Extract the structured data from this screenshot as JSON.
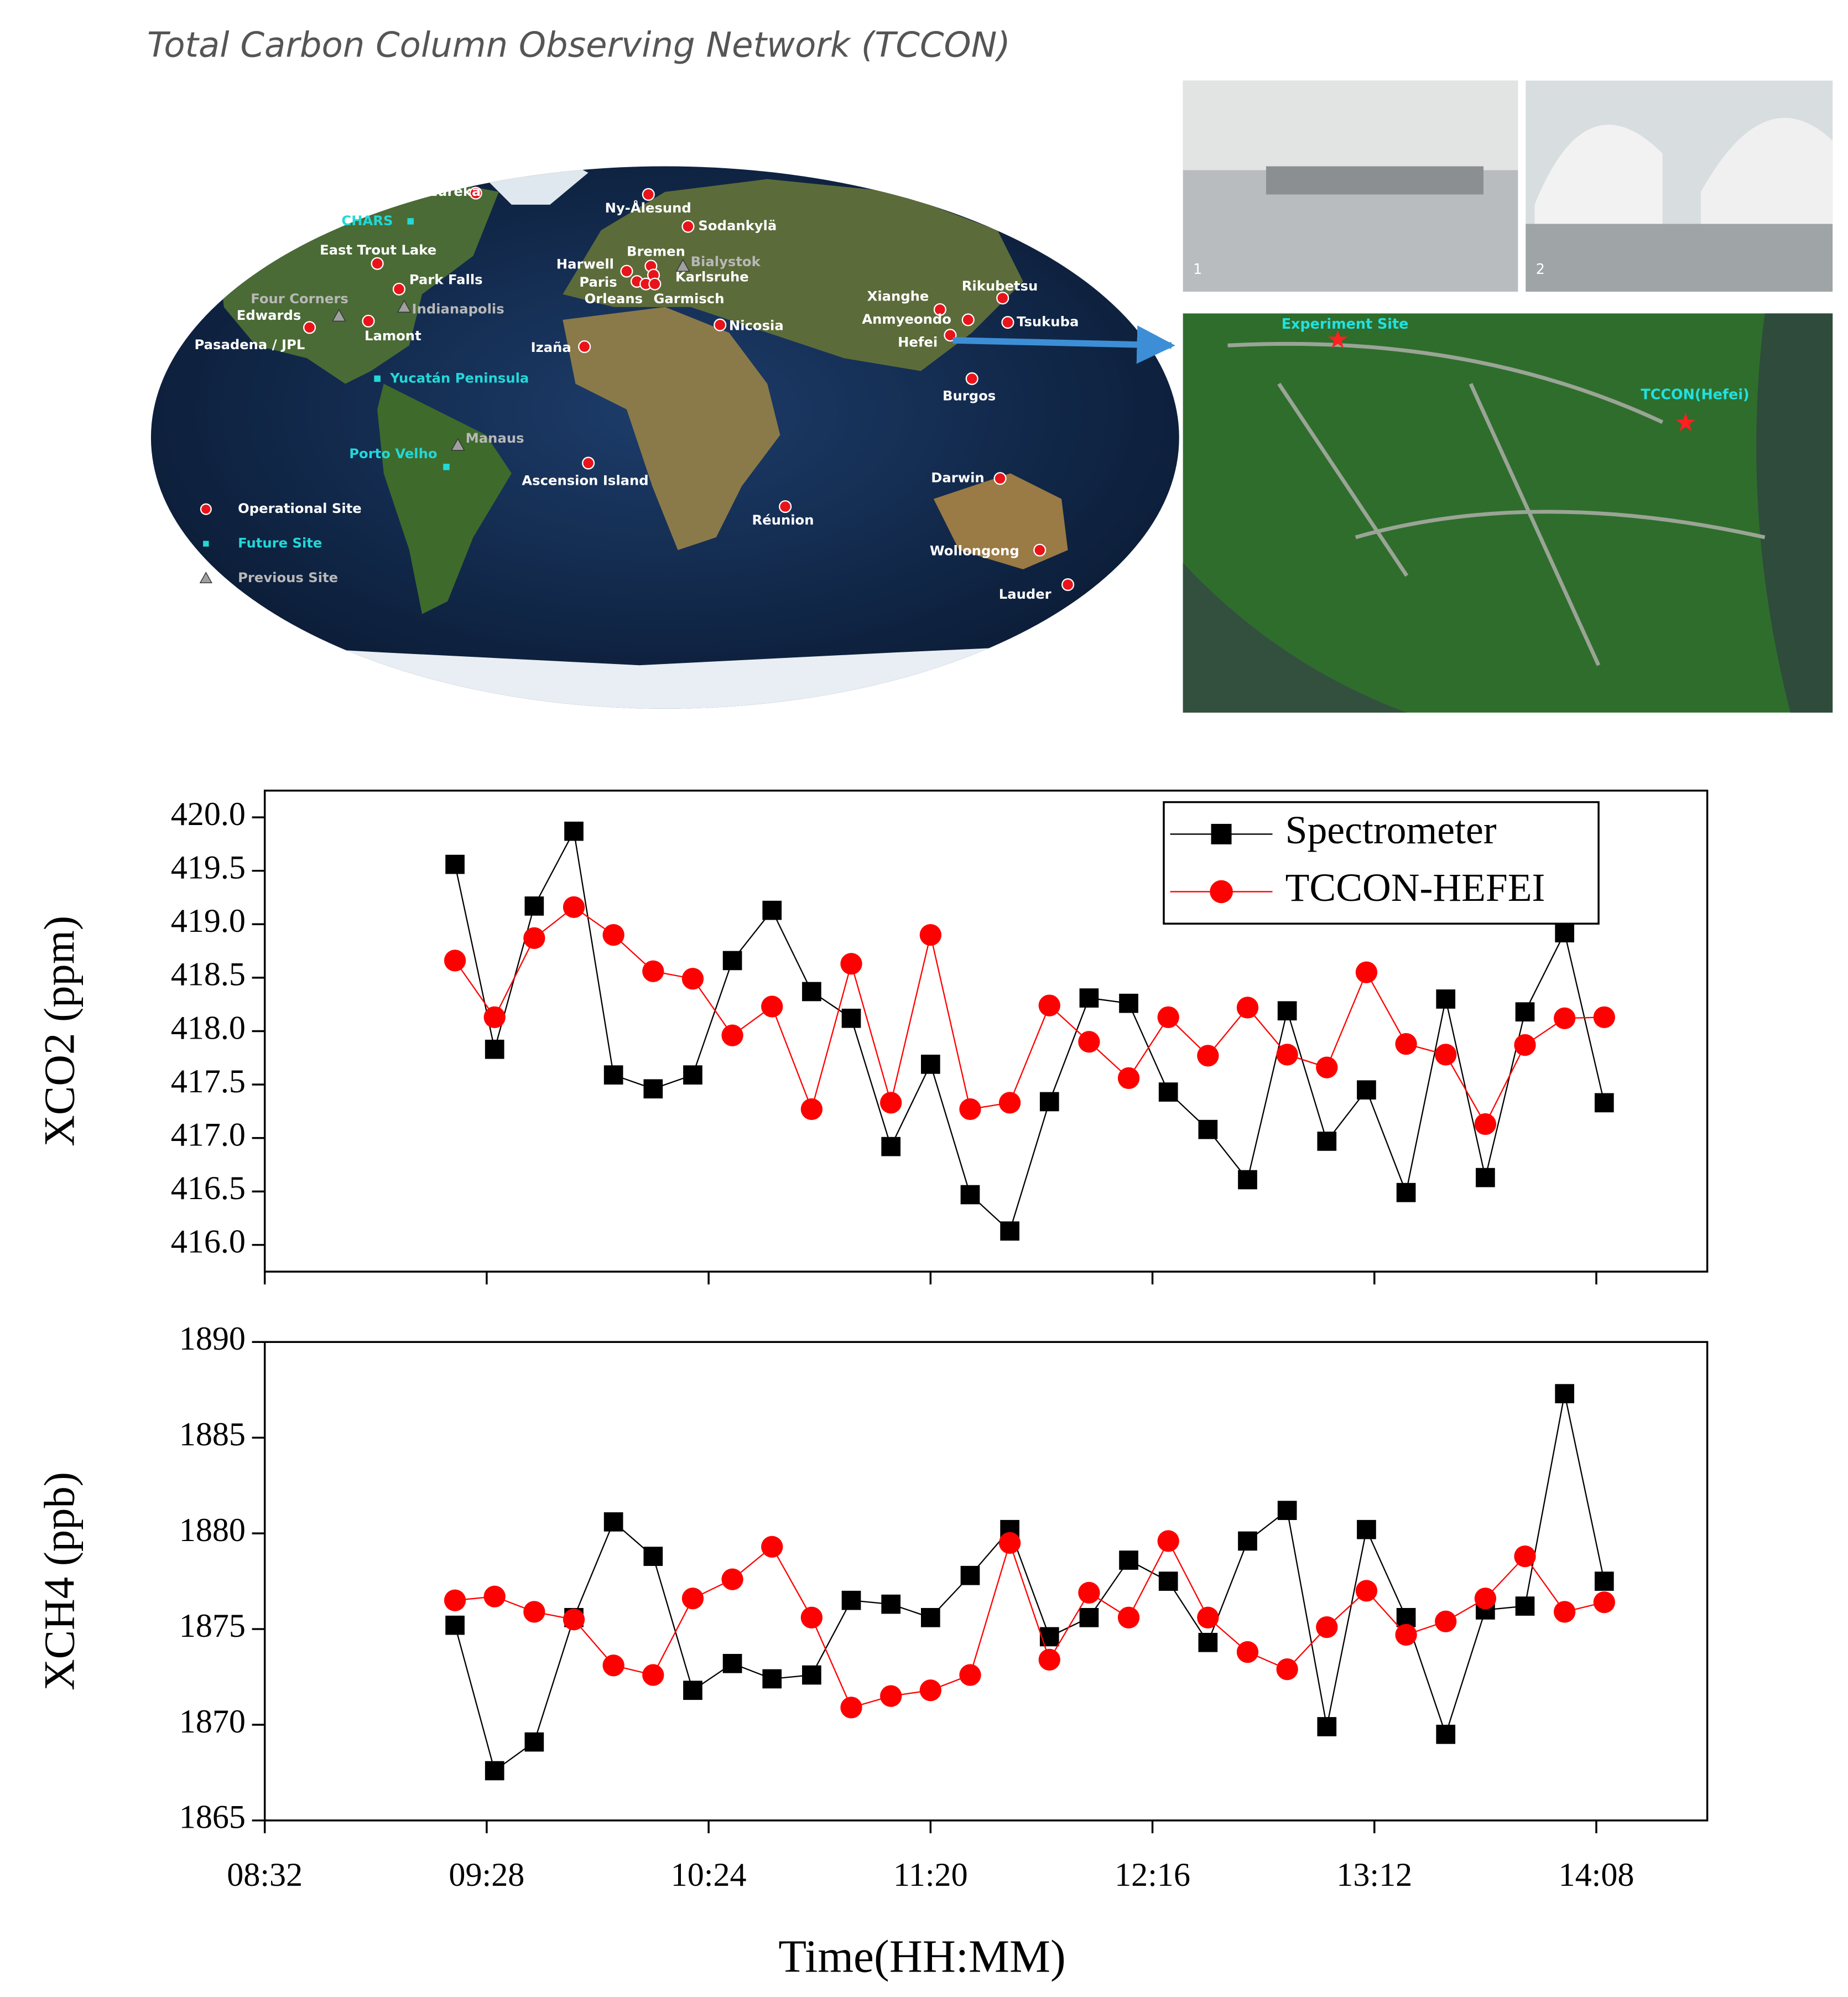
{
  "figure_title": "Total Carbon Column Observing Network (TCCON)",
  "map": {
    "sites": {
      "operational_sites": [
        "Eureka",
        "Ny-Ålesund",
        "Sodankylä",
        "East Trout Lake",
        "Bremen",
        "Harwell",
        "Karlsruhe",
        "Paris",
        "Orleans",
        "Garmisch",
        "Park Falls",
        "Edwards",
        "Lamont",
        "Pasadena / JPL",
        "Xianghe",
        "Rikubetsu",
        "Anmyeondo",
        "Tsukuba",
        "Hefei",
        "Nicosia",
        "Izaña",
        "Burgos",
        "Ascension Island",
        "Darwin",
        "Réunion",
        "Wollongong",
        "Lauder"
      ],
      "future_sites": [
        "CHARS",
        "Yucatán Peninsula",
        "Porto Velho"
      ],
      "previous_sites": [
        "Bialystok",
        "Four Corners",
        "Indianapolis",
        "Manaus"
      ]
    },
    "legend": [
      "Operational Site",
      "Future Site",
      "Previous Site"
    ]
  },
  "photos": {
    "labels": [
      "1",
      "2"
    ],
    "satellite_labels": [
      "Experiment Site",
      "TCCON(Hefei)"
    ]
  },
  "chart_data": [
    {
      "type": "line",
      "ylabel": "XCO2 (ppm)",
      "legend": "upper right",
      "x": [
        "09:20",
        "09:30",
        "09:40",
        "09:50",
        "10:00",
        "10:10",
        "10:20",
        "10:30",
        "10:40",
        "10:50",
        "11:00",
        "11:10",
        "11:20",
        "11:30",
        "11:40",
        "11:50",
        "12:00",
        "12:10",
        "12:20",
        "12:30",
        "12:40",
        "12:50",
        "13:00",
        "13:10",
        "13:20",
        "13:30",
        "13:40",
        "13:50",
        "14:00",
        "14:10"
      ],
      "xlim": [
        "08:32",
        "14:36"
      ],
      "ylim": [
        415.75,
        420.25
      ],
      "yticks": [
        {
          "value": 416,
          "label": "416.0"
        },
        416.5,
        {
          "value": 417,
          "label": "417.0"
        },
        417.5,
        {
          "value": 418,
          "label": "418.0"
        },
        418.5,
        {
          "value": 419,
          "label": "419.0"
        },
        419.5,
        {
          "value": 420,
          "label": "420.0"
        }
      ],
      "series": [
        {
          "name": "Spectrometer",
          "color": "#000000",
          "marker": "square",
          "values": [
            419.56,
            417.83,
            419.17,
            419.87,
            417.59,
            417.46,
            417.59,
            418.66,
            419.13,
            418.37,
            418.12,
            416.92,
            417.69,
            416.47,
            416.13,
            417.34,
            418.31,
            418.26,
            417.43,
            417.08,
            416.61,
            418.19,
            416.97,
            417.45,
            416.49,
            418.3,
            416.63,
            418.18,
            418.92,
            417.33
          ]
        },
        {
          "name": "TCCON-HEFEI",
          "color": "#ff0000",
          "marker": "circle",
          "values": [
            418.66,
            418.13,
            418.87,
            419.16,
            418.9,
            418.56,
            418.49,
            417.96,
            418.23,
            417.27,
            418.63,
            417.33,
            418.9,
            417.27,
            417.33,
            418.24,
            417.9,
            417.56,
            418.13,
            417.77,
            418.22,
            417.78,
            417.66,
            418.55,
            417.88,
            417.78,
            417.13,
            417.87,
            418.12,
            418.13
          ]
        }
      ]
    },
    {
      "type": "line",
      "ylabel": "XCH4 (ppb)",
      "xlabel": "Time(HH:MM)",
      "x": [
        "09:20",
        "09:30",
        "09:40",
        "09:50",
        "10:00",
        "10:10",
        "10:20",
        "10:30",
        "10:40",
        "10:50",
        "11:00",
        "11:10",
        "11:20",
        "11:30",
        "11:40",
        "11:50",
        "12:00",
        "12:10",
        "12:20",
        "12:30",
        "12:40",
        "12:50",
        "13:00",
        "13:10",
        "13:20",
        "13:30",
        "13:40",
        "13:50",
        "14:00",
        "14:10"
      ],
      "xlim": [
        "08:32",
        "14:36"
      ],
      "xticks": [
        "08:32",
        "09:28",
        "10:24",
        "11:20",
        "12:16",
        "13:12",
        "14:08"
      ],
      "ylim": [
        1865,
        1890
      ],
      "yticks": [
        1865,
        1870,
        1875,
        1880,
        1885,
        1890
      ],
      "series": [
        {
          "name": "Spectrometer",
          "color": "#000000",
          "marker": "square",
          "values": [
            1875.2,
            1867.6,
            1869.1,
            1875.6,
            1880.6,
            1878.8,
            1871.8,
            1873.2,
            1872.4,
            1872.6,
            1876.5,
            1876.3,
            1875.6,
            1877.8,
            1880.2,
            1874.6,
            1875.6,
            1878.6,
            1877.5,
            1874.3,
            1879.6,
            1881.2,
            1869.9,
            1880.2,
            1875.6,
            1869.5,
            1876.0,
            1876.2,
            1887.3,
            1877.5
          ]
        },
        {
          "name": "TCCON-HEFEI",
          "color": "#ff0000",
          "marker": "circle",
          "values": [
            1876.5,
            1876.7,
            1875.9,
            1875.5,
            1873.1,
            1872.6,
            1876.6,
            1877.6,
            1879.3,
            1875.6,
            1870.9,
            1871.5,
            1871.8,
            1872.6,
            1879.5,
            1873.4,
            1876.9,
            1875.6,
            1879.6,
            1875.6,
            1873.8,
            1872.9,
            1875.1,
            1877.0,
            1874.7,
            1875.4,
            1876.6,
            1878.8,
            1875.9,
            1876.4
          ]
        }
      ]
    }
  ]
}
